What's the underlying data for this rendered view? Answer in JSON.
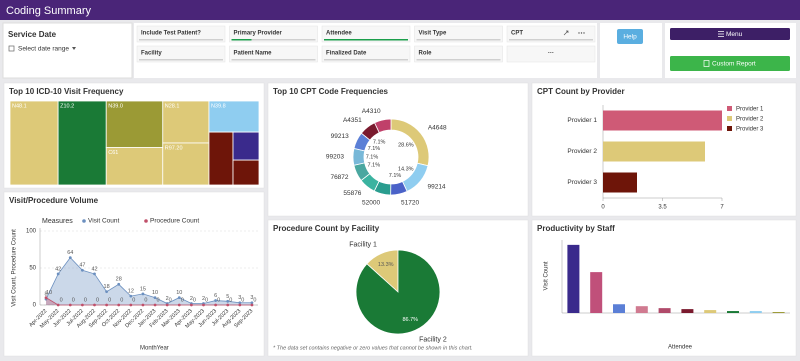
{
  "header": {
    "title": "Coding Summary"
  },
  "filters": {
    "service_date": {
      "label": "Service Date",
      "placeholder": "Select date range"
    },
    "fields": [
      "Include Test Patient?",
      "Primary Provider",
      "Attendee",
      "Visit Type",
      "CPT",
      "Facility",
      "Patient Name",
      "Finalized Date",
      "Role",
      "···"
    ]
  },
  "buttons": {
    "help": "Help",
    "menu": "Menu",
    "custom_report": "Custom Report"
  },
  "chart_data": [
    {
      "type": "treemap",
      "title": "Top 10 ICD-10 Visit Frequency",
      "categories": [
        "N48.1",
        "Z10.2",
        "N39.0",
        "C61",
        "N28.1",
        "R97.20",
        "N39.8",
        null,
        null,
        null
      ],
      "values": [
        20,
        20,
        13,
        10.5,
        9.6,
        9.6,
        7.7,
        6.3,
        3.6,
        3.2
      ],
      "colors": [
        "#ddc978",
        "#1a7a36",
        "#9b9a35",
        "#ddc978",
        "#ddc978",
        "#ddc978",
        "#8fcdf0",
        "#6e1509",
        "#3a2a8c",
        "#6e1509"
      ]
    },
    {
      "type": "donut",
      "title": "Top 10 CPT Code Frequencies",
      "categories": [
        "A4648",
        "99214",
        "51720",
        "52000",
        "55876",
        "76872",
        "99203",
        "99213",
        "A4351",
        "A4310"
      ],
      "values": [
        28.6,
        14.3,
        7.1,
        7.1,
        7.1,
        7.1,
        7.1,
        7.1,
        7.1,
        7.1
      ],
      "value_labels": [
        "28.6%",
        "14.3%",
        "7.1%",
        null,
        null,
        "7.1%",
        "7.1%",
        "7.1%",
        "7.1%",
        null
      ],
      "colors": [
        "#ddc978",
        "#8fcdf0",
        "#4a62c8",
        "#2a9d8f",
        "#3bb3a0",
        "#4aa7a0",
        "#78b8d8",
        "#5b7fd6",
        "#7a1a2e",
        "#c0406a"
      ]
    },
    {
      "type": "hbar",
      "title": "CPT Count by Provider",
      "categories": [
        "Provider 1",
        "Provider 2",
        "Provider 3"
      ],
      "values": [
        7,
        6,
        2
      ],
      "colors": [
        "#cf5a76",
        "#ddc978",
        "#6e1509"
      ],
      "xlim": [
        0,
        7
      ],
      "xticks": [
        0,
        3.5,
        7
      ],
      "legend": "right"
    },
    {
      "type": "line",
      "title": "Visit/Procedure Volume",
      "x_label": "MonthYear",
      "y_label": "Visit Count, Procedure Count",
      "legend_title": "Measures",
      "categories": [
        "Apr-2022",
        "May-2022",
        "Jun-2022",
        "Jul-2022",
        "Aug-2022",
        "Sep-2022",
        "Oct-2022",
        "Nov-2022",
        "Dec-2022",
        "Jan-2023",
        "Feb-2023",
        "Mar-2023",
        "Apr-2023",
        "May-2023",
        "Jun-2023",
        "Jul-2023",
        "Aug-2023",
        "Sep-2023"
      ],
      "series": [
        {
          "name": "Visit Count",
          "color": "#6b8fbf",
          "values": [
            8,
            42,
            64,
            47,
            42,
            18,
            28,
            12,
            15,
            10,
            2,
            10,
            2,
            2,
            6,
            5,
            3,
            3
          ]
        },
        {
          "name": "Procedure Count",
          "color": "#c0506a",
          "values": [
            10,
            0,
            0,
            0,
            0,
            0,
            0,
            0,
            0,
            0,
            0,
            0,
            0,
            0,
            0,
            0,
            0,
            0
          ]
        }
      ],
      "ylim": [
        0,
        100
      ],
      "yticks": [
        0,
        50,
        100
      ],
      "grid": true
    },
    {
      "type": "pie",
      "title": "Procedure Count by Facility",
      "categories": [
        "Facility 1",
        "Facility 2"
      ],
      "values": [
        13.3,
        86.7
      ],
      "value_labels": [
        "13.3%",
        "86.7%"
      ],
      "colors": [
        "#ddc978",
        "#1a7a36"
      ],
      "note": "* The data set contains negative or zero values that cannot be shown in this chart."
    },
    {
      "type": "bar",
      "title": "Productivity by Staff",
      "y_label": "Visit Count",
      "x_label": "Attendee",
      "categories": [
        null,
        null,
        null,
        null,
        null,
        null,
        null,
        null,
        null,
        null
      ],
      "values": [
        70,
        42,
        9,
        7,
        5,
        4,
        3,
        2,
        2,
        1
      ],
      "colors": [
        "#3a2a8c",
        "#c0507a",
        "#5b7fd6",
        "#d07a90",
        "#b04a6a",
        "#7a1a2e",
        "#ddc978",
        "#1a7a36",
        "#8fcdf0",
        "#9b9a35"
      ],
      "ylim": [
        0,
        75
      ]
    }
  ]
}
